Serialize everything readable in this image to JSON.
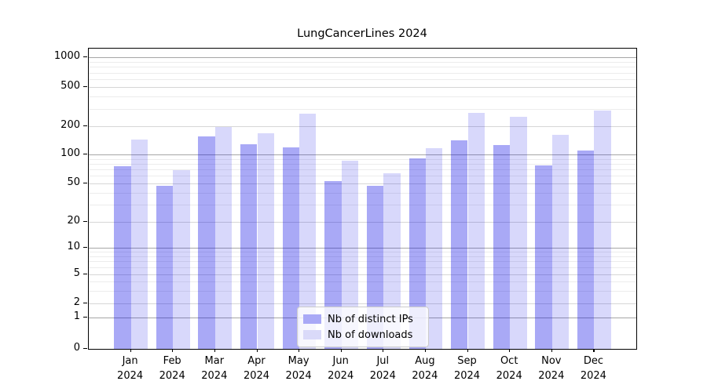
{
  "chart_data": {
    "type": "bar",
    "title": "LungCancerLines 2024",
    "categories": [
      "Jan",
      "Feb",
      "Mar",
      "Apr",
      "May",
      "Jun",
      "Jul",
      "Aug",
      "Sep",
      "Oct",
      "Nov",
      "Dec"
    ],
    "category_year": "2024",
    "series": [
      {
        "name": "Nb of distinct IPs",
        "color": "rgba(10,10,230,0.35)",
        "swatch_color": "#a9a9f6",
        "values": [
          76,
          47,
          155,
          128,
          118,
          53,
          47,
          91,
          142,
          127,
          77,
          110
        ]
      },
      {
        "name": "Nb of downloads",
        "color": "rgba(10,10,230,0.16)",
        "swatch_color": "#dadaf9",
        "values": [
          143,
          69,
          195,
          169,
          266,
          86,
          64,
          117,
          272,
          250,
          162,
          291
        ]
      }
    ],
    "yscale": "asinh",
    "yticks": [
      0,
      1,
      2,
      5,
      10,
      20,
      50,
      100,
      200,
      500,
      1000
    ],
    "yticks_minor": [
      3,
      4,
      6,
      7,
      8,
      9,
      30,
      40,
      60,
      70,
      80,
      90,
      300,
      400,
      600,
      700,
      800,
      900
    ],
    "ylim": [
      0,
      1200
    ],
    "xlabel": "",
    "ylabel": "",
    "grid": "major+minor",
    "legend_position": "lower center"
  }
}
